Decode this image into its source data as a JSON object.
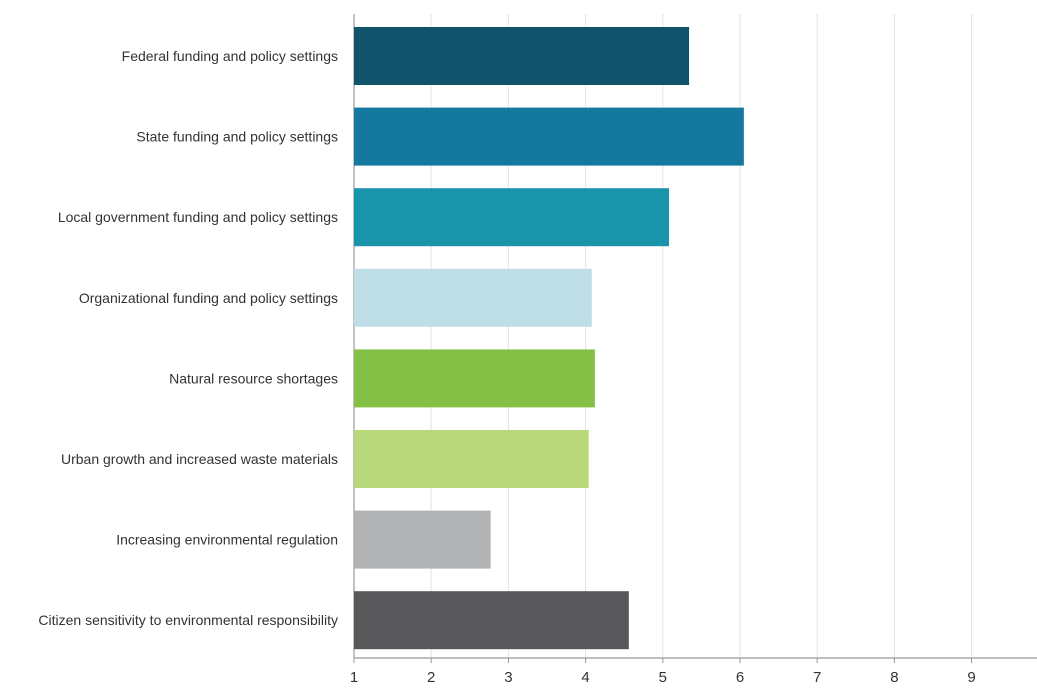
{
  "chart_data": {
    "type": "bar",
    "orientation": "horizontal",
    "title": "",
    "xlabel": "",
    "ylabel": "",
    "categories": [
      "Federal funding and policy settings",
      "State funding and policy settings",
      "Local government funding and policy settings",
      "Organizational funding and policy settings",
      "Natural resource shortages",
      "Urban growth and increased waste materials",
      "Increasing environmental regulation",
      "Citizen sensitivity to environmental responsibility"
    ],
    "values": [
      5.34,
      6.05,
      5.08,
      4.08,
      4.12,
      4.04,
      2.77,
      4.56
    ],
    "colors": [
      "#11536b",
      "#14789f",
      "#1a94ab",
      "#bfdfe8",
      "#84c045",
      "#b9d87a",
      "#b2b3b5",
      "#58585a"
    ],
    "xlim": [
      1,
      10
    ],
    "xticks": [
      1,
      2,
      3,
      4,
      5,
      6,
      7,
      8,
      9,
      10
    ],
    "grid": true,
    "legend": "none"
  }
}
